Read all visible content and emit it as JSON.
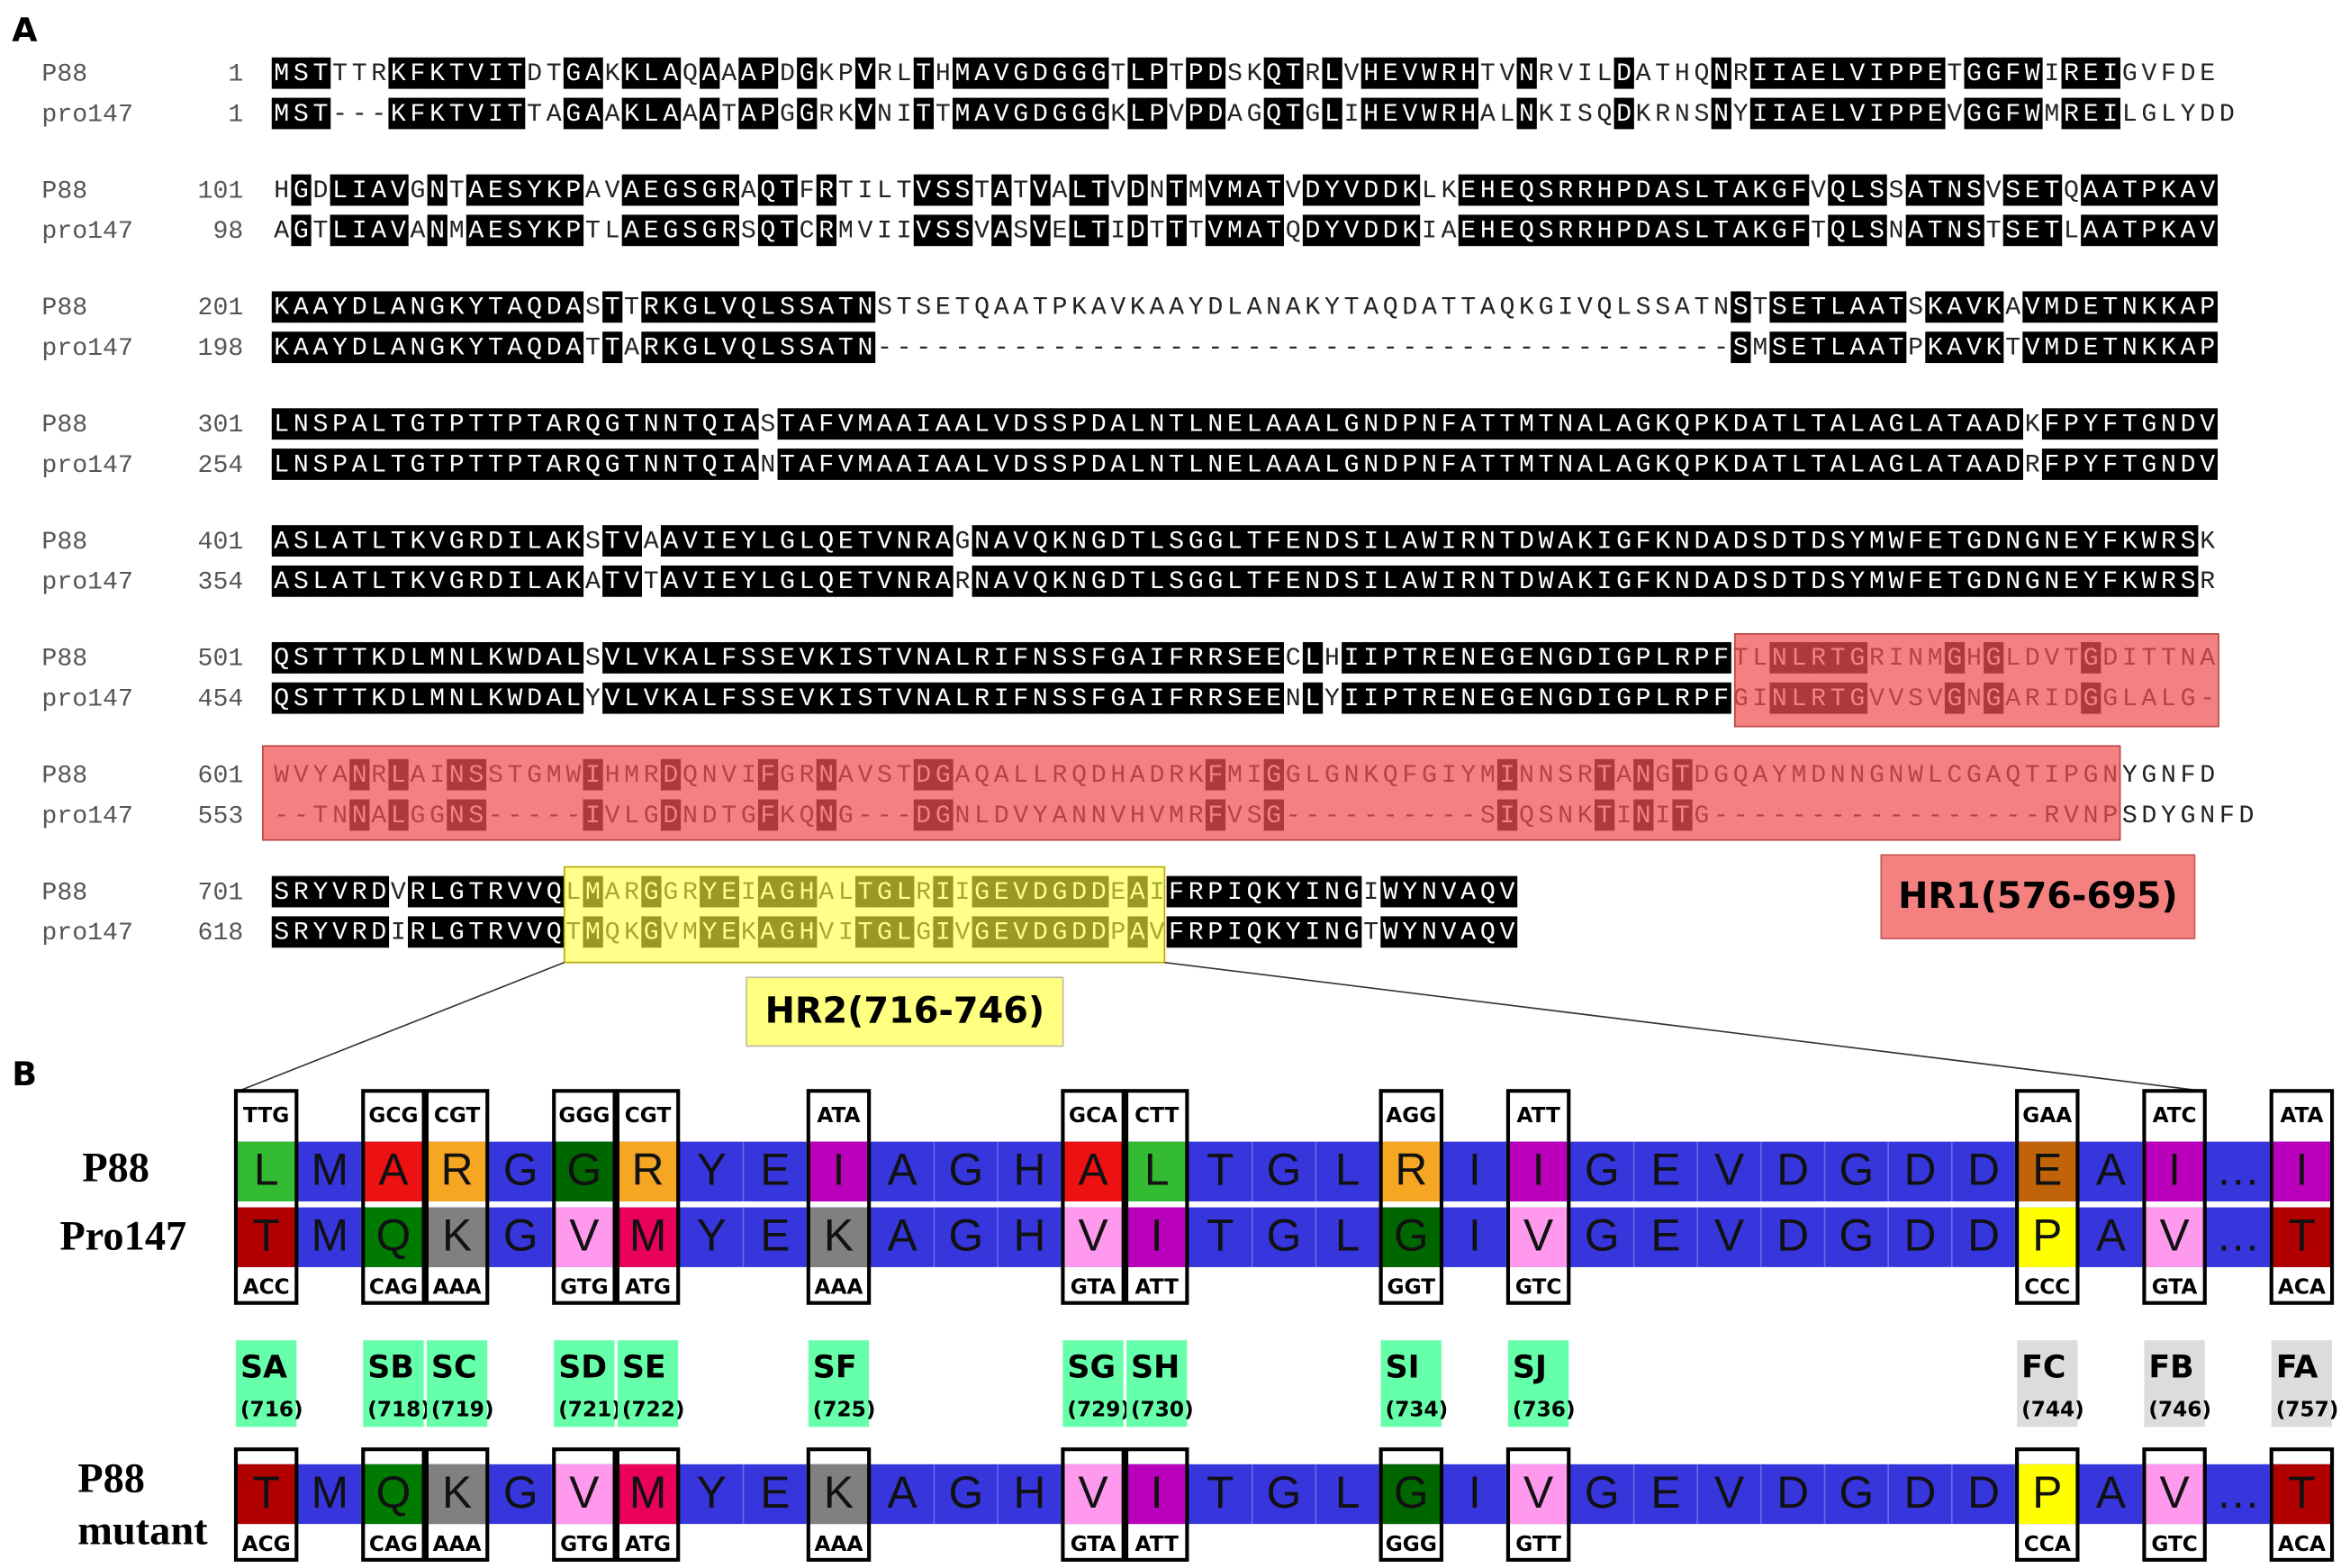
{
  "panel_a": {
    "label": "A",
    "names": [
      "P88",
      "pro147"
    ],
    "rows": [
      {
        "starts": [
          1,
          1
        ],
        "seqs": [
          "MSTTTRKFKTVITDTGAKKLAQAAAPDGKPVRLTHMAVGDGGGTLPTPDSKQTRLVHEVWRHTVNRVILDATHQNRIIAELVIPPETGGFWIREIGVFDE",
          "MST---KFKTVITTAGAAKLAAATAPGGRKVNITTMAVGDGGGKLPVPDAGQTGLIHEVWRHALNKISQDKRNSNYIIAELVIPPEVGGFWMREILGLYDD"
        ]
      },
      {
        "starts": [
          101,
          98
        ],
        "seqs": [
          "HGDLIAVGNTAESYKPAVAEGSGRAQTFRTILTVSSTATVALTVDNTMVMATVDYVDDKLKEHEQSRRHPDASLTAKGFVQLSSATNSVSETQAATPKAV",
          "AGTLIAVANMAESYKPTLAEGSGRSQTCRMVIIVSSVASVELTIDTTTVMATQDYVDDKIAEHEQSRRHPDASLTAKGFTQLSNATNSTSETLAATPKAV"
        ]
      },
      {
        "starts": [
          201,
          198
        ],
        "seqs": [
          "KAAYDLANGKYTAQDASTTRKGLVQLSSATNSTSETQAATPKAVKAAYDLANAKYTAQDATTAQKGIVQLSSATNSTSETLAATSKAVKAVMDETNKKAP",
          "KAAYDLANGKYTAQDATTARKGLVQLSSATN--------------------------------------------SMSETLAATPKAVKTVMDETNKKAP"
        ]
      },
      {
        "starts": [
          301,
          254
        ],
        "seqs": [
          "LNSPALTGTPTTPTARQGTNNTQIASTAFVMAAIAALVDSSPDALNTLNELAAALGNDPNFATTMTNALAGKQPKDATLTALAGLATAADKFPYFTGNDV",
          "LNSPALTGTPTTPTARQGTNNTQIANTAFVMAAIAALVDSSPDALNTLNELAAALGNDPNFATTMTNALAGKQPKDATLTALAGLATAADRFPYFTGNDV"
        ]
      },
      {
        "starts": [
          401,
          354
        ],
        "seqs": [
          "ASLATLTKVGRDILAKSTVAAVIEYLGLQETVNRAGNAVQKNGDTLSGGLTFENDSILAWIRNTDWAKIGFKNDADSDTDSYMWFETGDNGNEYFKWRSK",
          "ASLATLTKVGRDILAKATVTAVIEYLGLQETVNRARNAVQKNGDTLSGGLTFENDSILAWIRNTDWAKIGFKNDADSDTDSYMWFETGDNGNEYFKWRSR"
        ]
      },
      {
        "starts": [
          501,
          454
        ],
        "seqs": [
          "QSTTTKDLMNLKWDALSVLVKALFSSEVKISTVNALRIFNSSFGAIFRRSEECLHIIPTRENEGENGDIGPLRPFTLNLRTGRINMGHGLDVTGDITTNA",
          "QSTTTKDLMNLKWDALYVLVKALFSSEVKISTVNALRIFNSSFGAIFRRSEENLYIIPTRENEGENGDIGPLRPFGINLRTGVVSVGNGARIDGGLALG-"
        ]
      },
      {
        "starts": [
          601,
          553
        ],
        "seqs": [
          "WVYANRLAINSSTGMWIHMRDQNVIFGRNAVSTDGAQALLRQDHADRKFMIGGLGNKQFGIYMINNSRTANGTDGQAYMDNNGNWLCGAQTIPGNYGNFD",
          "--TNNALGGNS-----IVLGDNDTGFKQNG---DGNLDVYANNVHVMRFVSG----------SIQSNKTINITG-----------------RVNPSDYGNFD"
        ]
      },
      {
        "starts": [
          701,
          618
        ],
        "seqs": [
          "SRYVRDVRLGTRVVQLMARGGRYEIAGHALTGLRIIGEVDGDDEAIFRPIQKYINGIWYNVAQV",
          "SRYVRDIRLGTRVVQTMQKGVMYEKAGHVITGLGIVGEVDGDDPAVFRPIQKYINGTWYNVAQV"
        ]
      }
    ],
    "hr1": "HR1(576-695)",
    "hr2": "HR2(716-746)"
  },
  "panel_b": {
    "label": "B",
    "row_labels": [
      "P88",
      "Pro147"
    ],
    "mutant_label_lines": [
      "P88",
      "mutant"
    ],
    "p88_residues": [
      "L",
      "M",
      "A",
      "R",
      "G",
      "G",
      "R",
      "Y",
      "E",
      "I",
      "A",
      "G",
      "H",
      "A",
      "L",
      "T",
      "G",
      "L",
      "R",
      "I",
      "I",
      "G",
      "E",
      "V",
      "D",
      "G",
      "D",
      "D",
      "E",
      "A",
      "I",
      "…",
      "I"
    ],
    "pro147_residues": [
      "T",
      "M",
      "Q",
      "K",
      "G",
      "V",
      "M",
      "Y",
      "E",
      "K",
      "A",
      "G",
      "H",
      "V",
      "I",
      "T",
      "G",
      "L",
      "G",
      "I",
      "V",
      "G",
      "E",
      "V",
      "D",
      "G",
      "D",
      "D",
      "P",
      "A",
      "V",
      "…",
      "T"
    ],
    "mutant_residues": [
      "T",
      "M",
      "Q",
      "K",
      "G",
      "V",
      "M",
      "Y",
      "E",
      "K",
      "A",
      "G",
      "H",
      "V",
      "I",
      "T",
      "G",
      "L",
      "G",
      "I",
      "V",
      "G",
      "E",
      "V",
      "D",
      "G",
      "D",
      "D",
      "P",
      "A",
      "V",
      "…",
      "T"
    ],
    "codons": {
      "p88": [
        "TTG",
        "GCG",
        "CGT",
        "GGG",
        "CGT",
        "ATA",
        "GCA",
        "CTT",
        "AGG",
        "ATT",
        "GAA",
        "ATC",
        "ATA"
      ],
      "pro147": [
        "ACC",
        "CAG",
        "AAA",
        "GTG",
        "ATG",
        "AAA",
        "GTA",
        "ATT",
        "GGT",
        "GTC",
        "CCC",
        "GTA",
        "ACA"
      ],
      "mutant": [
        "ACG",
        "CAG",
        "AAA",
        "GTG",
        "ATG",
        "AAA",
        "GTA",
        "ATT",
        "GGG",
        "GTT",
        "CCA",
        "GTC",
        "ACA"
      ]
    },
    "sites": [
      {
        "code": "SA",
        "pos": "(716)"
      },
      {
        "code": "SB",
        "pos": "(718)"
      },
      {
        "code": "SC",
        "pos": "(719)"
      },
      {
        "code": "SD",
        "pos": "(721)"
      },
      {
        "code": "SE",
        "pos": "(722)"
      },
      {
        "code": "SF",
        "pos": "(725)"
      },
      {
        "code": "SG",
        "pos": "(729)"
      },
      {
        "code": "SH",
        "pos": "(730)"
      },
      {
        "code": "SI",
        "pos": "(734)"
      },
      {
        "code": "SJ",
        "pos": "(736)"
      },
      {
        "code": "FC",
        "pos": "(744)"
      },
      {
        "code": "FB",
        "pos": "(746)"
      },
      {
        "code": "FA",
        "pos": "(757)"
      }
    ]
  }
}
